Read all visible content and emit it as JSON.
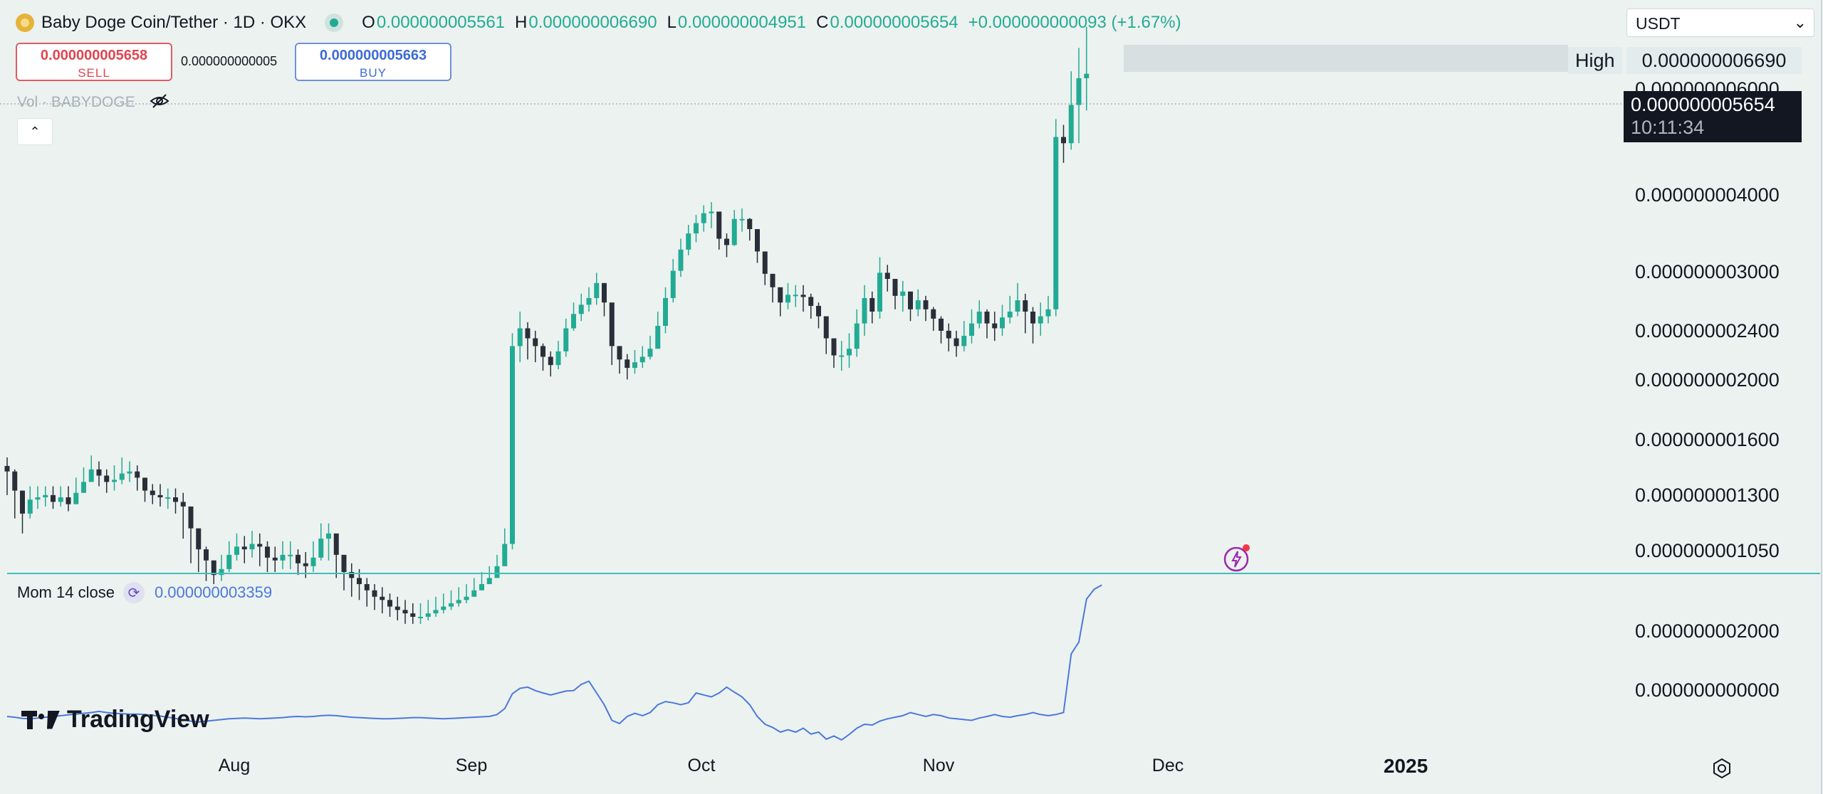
{
  "header": {
    "title": "Baby Doge Coin/Tether · 1D · OKX",
    "ohlc": [
      {
        "key": "O",
        "value": "0.000000005561"
      },
      {
        "key": "H",
        "value": "0.000000006690"
      },
      {
        "key": "L",
        "value": "0.000000004951"
      },
      {
        "key": "C",
        "value": "0.000000005654"
      }
    ],
    "change": "+0.000000000093 (+1.67%)"
  },
  "trade": {
    "sell_price": "0.000000005658",
    "sell_label": "SELL",
    "spread": "0.000000000005",
    "buy_price": "0.000000005663",
    "buy_label": "BUY"
  },
  "volume_label": "Vol · BABYDOGE",
  "currency": "USDT",
  "price_axis": {
    "high_label": "High",
    "high_value": "0.000000006690",
    "last_value": "0.000000005654",
    "countdown": "10:11:34",
    "ticks": [
      "0.000000006000",
      "0.000000004000",
      "0.000000003000",
      "0.000000002400",
      "0.000000002000",
      "0.000000001600",
      "0.000000001300",
      "0.000000001050"
    ]
  },
  "momentum": {
    "label": "Mom 14 close",
    "value": "0.000000003359",
    "ticks": [
      "0.000000002000",
      "0.000000000000"
    ]
  },
  "time_axis": {
    "ticks": [
      "Aug",
      "Sep",
      "Oct",
      "Nov",
      "Dec"
    ],
    "year": "2025"
  },
  "branding": "TradingView",
  "colors": {
    "up": "#22ab94",
    "down": "#2a2e39",
    "momentum": "#4a78dd",
    "background": "#ecf2ef",
    "separator": "#3fbfc0"
  },
  "chart_data": [
    {
      "type": "candlestick",
      "title": "Baby Doge Coin/Tether · 1D · OKX",
      "scale": "log",
      "ylim": [
        9.4e-10,
        7e-09
      ],
      "xlabel": "",
      "ylabel": "",
      "grid": false,
      "x_ticks": [
        "Aug",
        "Sep",
        "Oct",
        "Nov",
        "Dec",
        "2025"
      ],
      "y_ticks": [
        6e-09,
        4e-09,
        3e-09,
        2.4e-09,
        2e-09,
        1.6e-09,
        1.3e-09,
        1.05e-09
      ],
      "close": [
        1.35,
        1.26,
        1.16,
        1.22,
        1.23,
        1.24,
        1.21,
        1.23,
        1.2,
        1.25,
        1.3,
        1.36,
        1.33,
        1.3,
        1.31,
        1.34,
        1.35,
        1.32,
        1.26,
        1.24,
        1.23,
        1.23,
        1.21,
        1.19,
        1.1,
        1.02,
        0.98,
        0.93,
        0.95,
        1.0,
        1.03,
        1.02,
        1.04,
        1.03,
        0.99,
        0.98,
        1.0,
        1.0,
        0.97,
        0.96,
        0.99,
        1.06,
        1.08,
        1.0,
        0.94,
        0.92,
        0.9,
        0.88,
        0.86,
        0.85,
        0.83,
        0.82,
        0.81,
        0.8,
        0.8,
        0.81,
        0.82,
        0.83,
        0.84,
        0.85,
        0.86,
        0.88,
        0.9,
        0.92,
        0.96,
        1.04,
        2.12,
        2.26,
        2.18,
        2.12,
        2.04,
        1.98,
        2.08,
        2.26,
        2.38,
        2.46,
        2.52,
        2.66,
        2.48,
        2.12,
        2.02,
        1.96,
        2.0,
        2.04,
        2.1,
        2.28,
        2.52,
        2.78,
        3.0,
        3.18,
        3.3,
        3.42,
        3.44,
        3.12,
        3.05,
        3.35,
        3.35,
        3.23,
        2.98,
        2.75,
        2.62,
        2.48,
        2.55,
        2.55,
        2.53,
        2.45,
        2.36,
        2.18,
        2.05,
        2.05,
        2.1,
        2.3,
        2.52,
        2.4,
        2.76,
        2.7,
        2.54,
        2.58,
        2.42,
        2.5,
        2.42,
        2.34,
        2.24,
        2.18,
        2.12,
        2.2,
        2.3,
        2.4,
        2.3,
        2.26,
        2.35,
        2.4,
        2.5,
        2.4,
        2.3,
        2.36,
        2.42,
        4.5,
        4.4,
        5.05,
        5.56,
        5.65
      ],
      "high": [
        1.42,
        1.36,
        1.26,
        1.28,
        1.28,
        1.28,
        1.28,
        1.28,
        1.28,
        1.32,
        1.37,
        1.43,
        1.4,
        1.36,
        1.38,
        1.42,
        1.4,
        1.38,
        1.32,
        1.29,
        1.29,
        1.27,
        1.27,
        1.25,
        1.17,
        1.08,
        1.03,
        0.98,
        1.0,
        1.05,
        1.08,
        1.07,
        1.09,
        1.08,
        1.05,
        1.03,
        1.05,
        1.05,
        1.02,
        1.01,
        1.05,
        1.12,
        1.12,
        1.07,
        0.99,
        0.97,
        0.95,
        0.92,
        0.9,
        0.89,
        0.87,
        0.86,
        0.85,
        0.84,
        0.84,
        0.85,
        0.86,
        0.87,
        0.88,
        0.89,
        0.9,
        0.92,
        0.94,
        0.96,
        1.0,
        1.1,
        2.22,
        2.4,
        2.31,
        2.24,
        2.14,
        2.08,
        2.16,
        2.34,
        2.48,
        2.56,
        2.62,
        2.76,
        2.58,
        2.22,
        2.12,
        2.06,
        2.09,
        2.12,
        2.2,
        2.4,
        2.62,
        2.9,
        3.12,
        3.28,
        3.4,
        3.52,
        3.56,
        3.3,
        3.18,
        3.46,
        3.48,
        3.36,
        3.12,
        2.88,
        2.74,
        2.6,
        2.66,
        2.64,
        2.64,
        2.56,
        2.48,
        2.3,
        2.16,
        2.16,
        2.22,
        2.42,
        2.64,
        2.58,
        2.92,
        2.84,
        2.68,
        2.68,
        2.54,
        2.6,
        2.54,
        2.44,
        2.36,
        2.3,
        2.24,
        2.32,
        2.42,
        2.5,
        2.42,
        2.4,
        2.46,
        2.54,
        2.66,
        2.56,
        2.44,
        2.48,
        2.54,
        4.8,
        4.7,
        5.7,
        6.2,
        6.69
      ],
      "low": [
        1.24,
        1.14,
        1.08,
        1.14,
        1.18,
        1.19,
        1.18,
        1.19,
        1.17,
        1.2,
        1.25,
        1.31,
        1.28,
        1.25,
        1.26,
        1.29,
        1.3,
        1.26,
        1.21,
        1.2,
        1.19,
        1.18,
        1.16,
        1.06,
        0.97,
        0.94,
        0.91,
        0.9,
        0.91,
        0.94,
        0.98,
        0.97,
        0.99,
        0.96,
        0.94,
        0.94,
        0.95,
        0.95,
        0.93,
        0.92,
        0.94,
        0.98,
        0.98,
        0.92,
        0.88,
        0.86,
        0.85,
        0.83,
        0.82,
        0.81,
        0.8,
        0.79,
        0.78,
        0.78,
        0.78,
        0.79,
        0.8,
        0.81,
        0.82,
        0.83,
        0.84,
        0.86,
        0.88,
        0.9,
        0.94,
        0.96,
        1.02,
        2.0,
        2.02,
        2.0,
        1.94,
        1.9,
        1.95,
        2.04,
        2.24,
        2.32,
        2.4,
        2.46,
        2.36,
        1.98,
        1.92,
        1.88,
        1.92,
        1.96,
        2.02,
        2.1,
        2.22,
        2.48,
        2.72,
        2.94,
        3.08,
        3.2,
        3.24,
        3.0,
        2.92,
        3.04,
        3.2,
        3.1,
        2.86,
        2.64,
        2.48,
        2.36,
        2.42,
        2.44,
        2.4,
        2.34,
        2.26,
        2.06,
        1.96,
        1.94,
        1.96,
        2.04,
        2.2,
        2.3,
        2.34,
        2.58,
        2.42,
        2.4,
        2.32,
        2.36,
        2.32,
        2.24,
        2.14,
        2.08,
        2.04,
        2.08,
        2.14,
        2.26,
        2.18,
        2.16,
        2.2,
        2.3,
        2.36,
        2.22,
        2.14,
        2.2,
        2.3,
        2.36,
        4.1,
        4.3,
        4.4,
        4.95
      ]
    },
    {
      "type": "line",
      "title": "Mom 14 close",
      "ylim": [
        -6e-10,
        3.4e-09
      ],
      "y_ticks": [
        2e-09,
        0.0
      ],
      "series": [
        {
          "name": "Mom 14 close",
          "values": [
            0.0,
            -0.02,
            -0.05,
            -0.06,
            -0.04,
            -0.02,
            0.0,
            0.02,
            0.04,
            0.06,
            0.08,
            0.1,
            0.13,
            0.1,
            0.08,
            0.07,
            0.06,
            0.06,
            0.05,
            0.03,
            0.01,
            -0.02,
            -0.05,
            -0.09,
            -0.12,
            -0.14,
            -0.12,
            -0.1,
            -0.08,
            -0.06,
            -0.05,
            -0.04,
            -0.05,
            -0.06,
            -0.05,
            -0.04,
            -0.03,
            -0.01,
            0.0,
            -0.01,
            0.0,
            0.02,
            0.03,
            0.02,
            0.0,
            -0.02,
            -0.03,
            -0.04,
            -0.05,
            -0.06,
            -0.06,
            -0.05,
            -0.04,
            -0.03,
            -0.03,
            -0.04,
            -0.05,
            -0.06,
            -0.05,
            -0.04,
            -0.03,
            -0.02,
            -0.01,
            0.0,
            0.05,
            0.2,
            0.58,
            0.72,
            0.75,
            0.66,
            0.6,
            0.55,
            0.6,
            0.65,
            0.66,
            0.82,
            0.9,
            0.6,
            0.3,
            -0.1,
            -0.18,
            0.0,
            0.08,
            0.02,
            0.1,
            0.3,
            0.38,
            0.35,
            0.3,
            0.35,
            0.6,
            0.55,
            0.5,
            0.6,
            0.75,
            0.62,
            0.5,
            0.3,
            0.0,
            -0.2,
            -0.28,
            -0.4,
            -0.34,
            -0.4,
            -0.3,
            -0.45,
            -0.4,
            -0.58,
            -0.5,
            -0.6,
            -0.46,
            -0.3,
            -0.2,
            -0.22,
            -0.12,
            -0.06,
            -0.02,
            0.02,
            0.1,
            0.05,
            0.0,
            0.05,
            0.02,
            -0.04,
            -0.06,
            -0.08,
            -0.1,
            -0.04,
            0.0,
            0.05,
            0.0,
            -0.02,
            0.02,
            0.05,
            0.1,
            0.05,
            0.02,
            0.05,
            0.1,
            1.6,
            1.9,
            3.0,
            3.25,
            3.36
          ]
        }
      ]
    }
  ]
}
